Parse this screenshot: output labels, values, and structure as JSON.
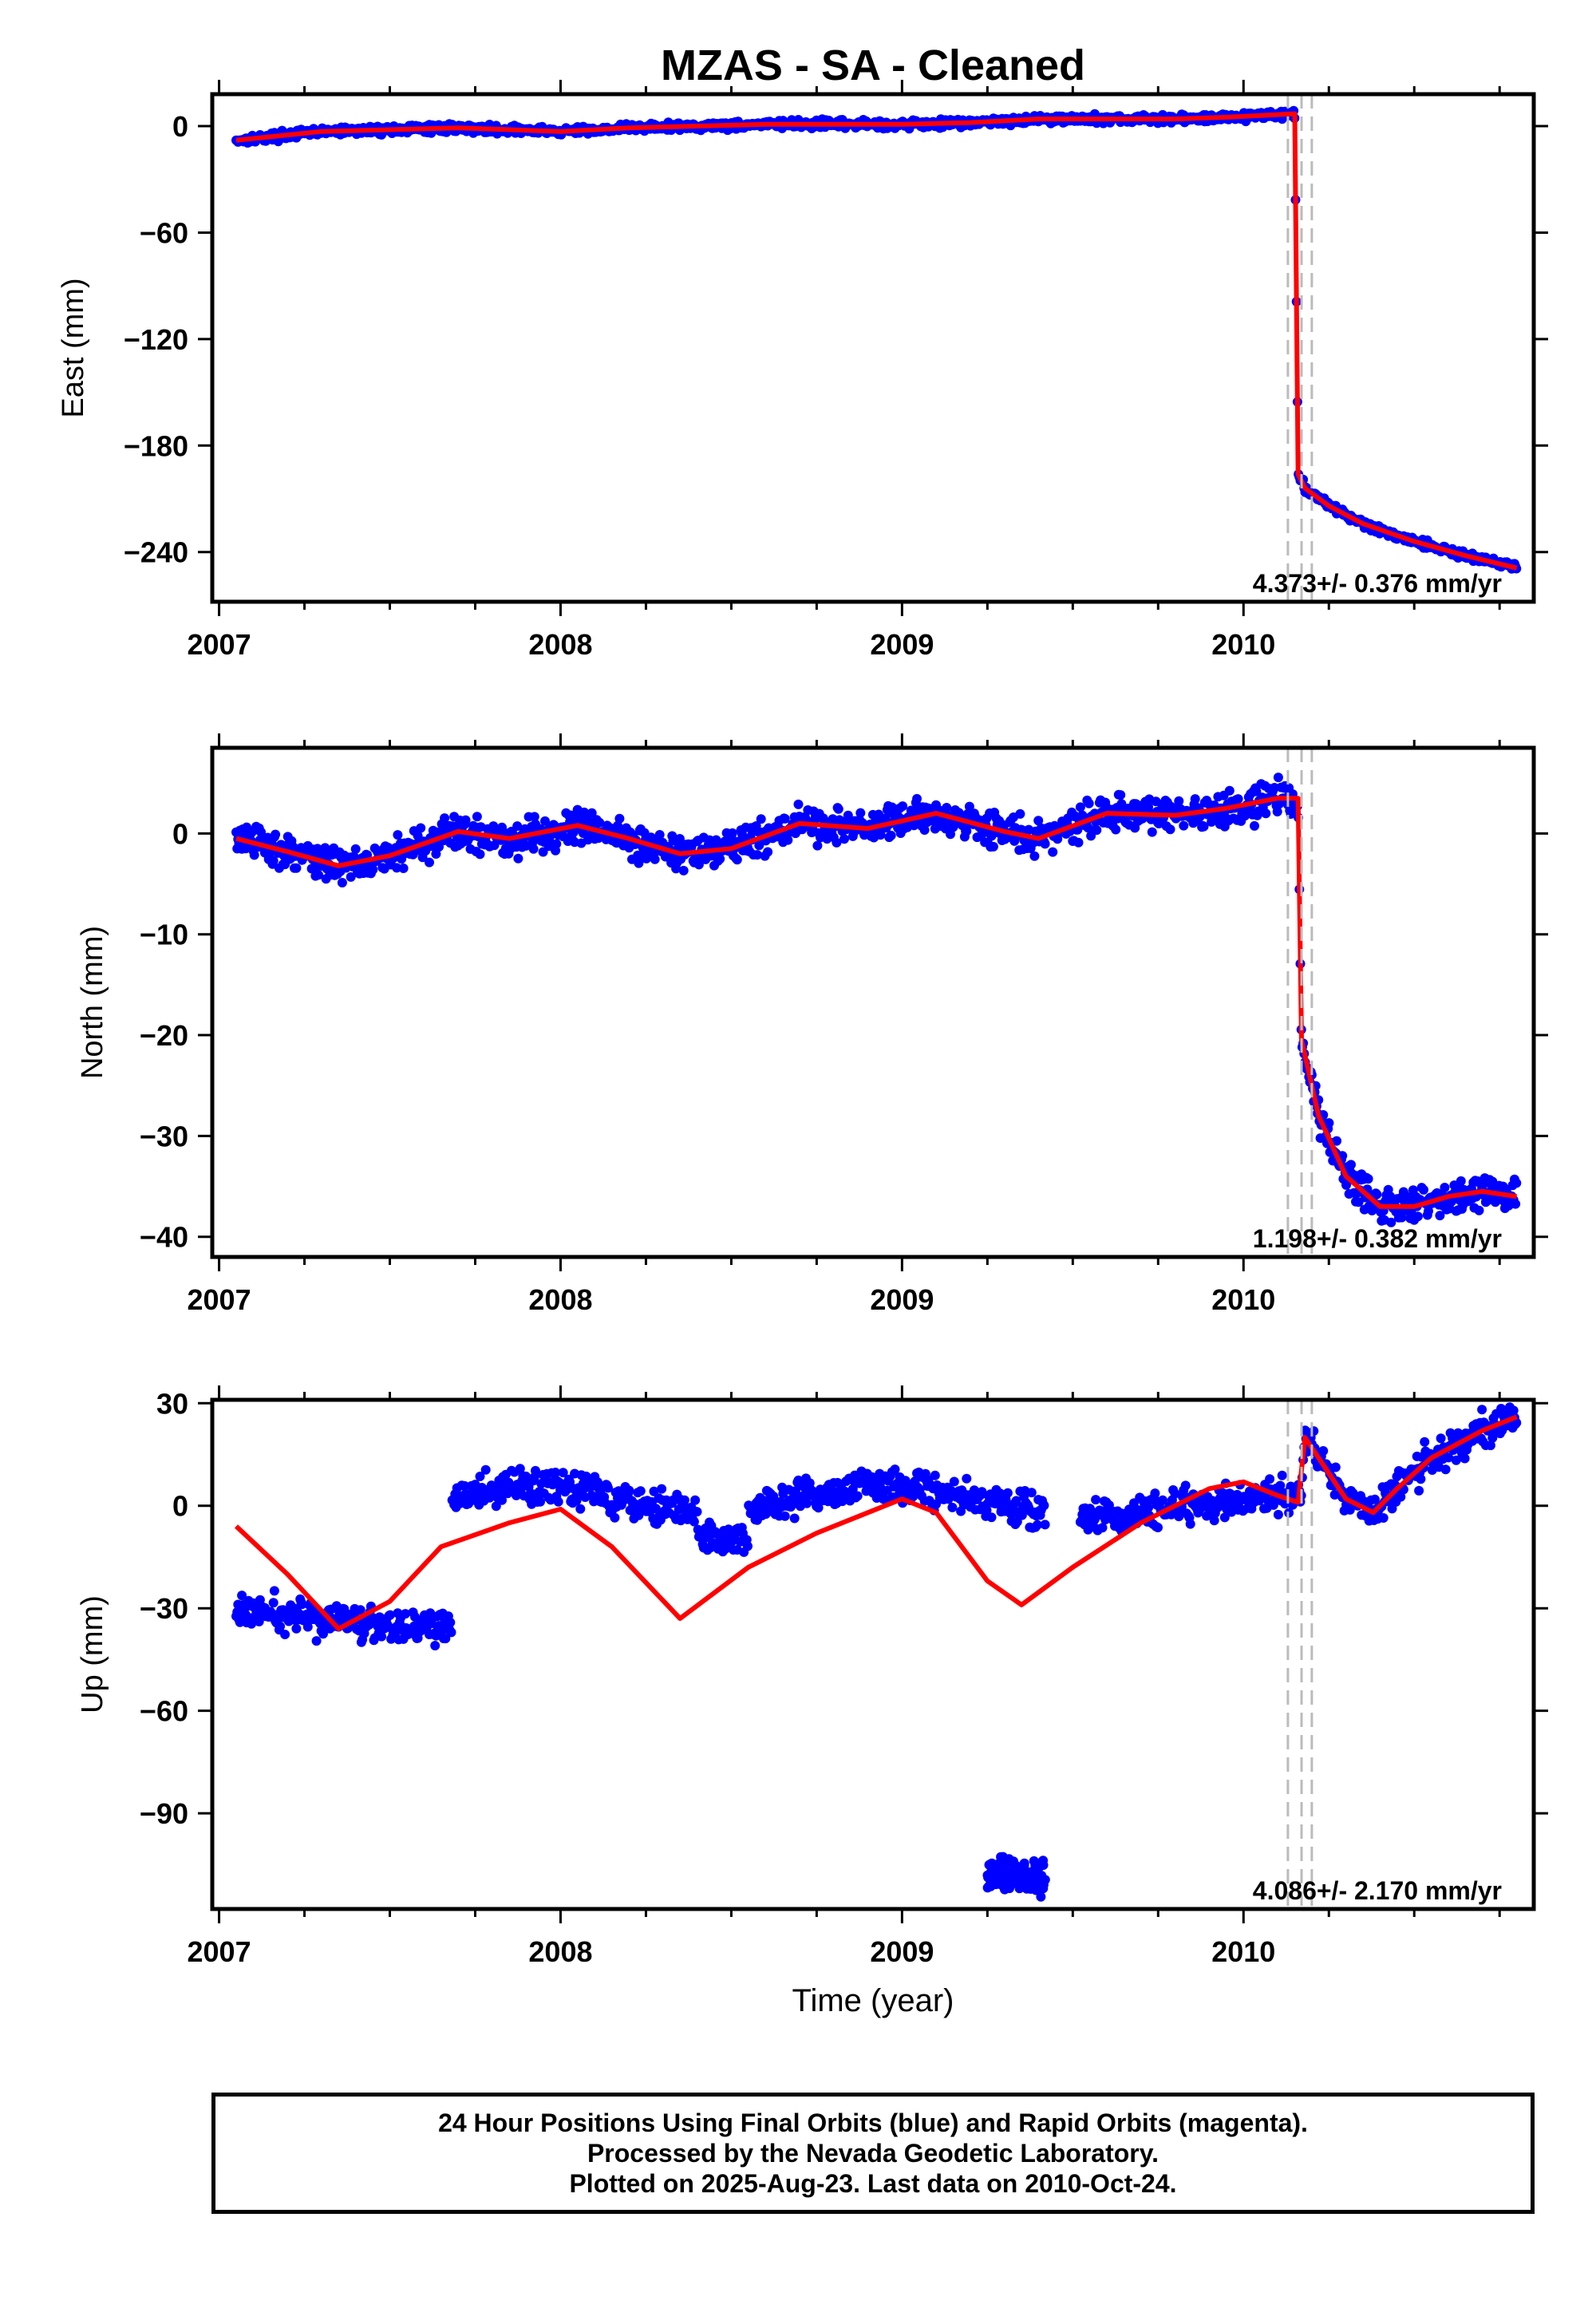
{
  "chart_data": [
    {
      "type": "scatter",
      "title": "MZAS  - SA - Cleaned",
      "xlabel": "",
      "ylabel": "East (mm)",
      "xlim": [
        2006.98,
        2010.85
      ],
      "ylim": [
        -268,
        18
      ],
      "x_ticks": [
        2007,
        2008,
        2009,
        2010
      ],
      "y_ticks": [
        0,
        -60,
        -120,
        -180,
        -240
      ],
      "steps": [
        2010.13,
        2010.17,
        2010.2
      ],
      "rate_label": "4.373+/- 0.376 mm/yr",
      "colors": {
        "data": "#0000ff",
        "model": "#ff0000",
        "steps": "#bbbbbb"
      },
      "series": [
        {
          "name": "",
          "x": [
            2007.05,
            2007.15,
            2007.3,
            2007.5,
            2007.7,
            2007.85,
            2008.0,
            2008.2,
            2008.4,
            2008.6,
            2008.8,
            2009.0,
            2009.2,
            2009.4,
            2009.6,
            2009.8,
            2009.95,
            2010.05,
            2010.15,
            2010.16,
            2010.18,
            2010.25,
            2010.35,
            2010.5,
            2010.65,
            2010.8
          ],
          "values": [
            -8,
            -6,
            -3,
            -2,
            -1,
            -2,
            -3,
            -1,
            0,
            1,
            1,
            1,
            2,
            4,
            4,
            4,
            5,
            6,
            7,
            -196,
            -204,
            -214,
            -224,
            -234,
            -242,
            -249
          ]
        }
      ]
    },
    {
      "type": "scatter",
      "xlabel": "",
      "ylabel": "North (mm)",
      "xlim": [
        2006.98,
        2010.85
      ],
      "ylim": [
        -42,
        8.5
      ],
      "x_ticks": [
        2007,
        2008,
        2009,
        2010
      ],
      "y_ticks": [
        0,
        -10,
        -20,
        -30,
        -40
      ],
      "steps": [
        2010.13,
        2010.17,
        2010.2
      ],
      "rate_label": "1.198+/- 0.382 mm/yr",
      "colors": {
        "data": "#0000ff",
        "model": "#ff0000",
        "steps": "#bbbbbb"
      },
      "series": [
        {
          "name": "",
          "x": [
            2007.05,
            2007.2,
            2007.35,
            2007.5,
            2007.7,
            2007.85,
            2008.05,
            2008.2,
            2008.35,
            2008.5,
            2008.7,
            2008.9,
            2009.1,
            2009.3,
            2009.4,
            2009.6,
            2009.8,
            2009.95,
            2010.1,
            2010.16,
            2010.17,
            2010.22,
            2010.3,
            2010.4,
            2010.5,
            2010.6,
            2010.7,
            2010.8
          ],
          "values": [
            -0.5,
            -1.8,
            -3.2,
            -2.2,
            0.2,
            -0.5,
            0.8,
            -0.5,
            -2.0,
            -1.5,
            1.0,
            0.5,
            2.0,
            0.2,
            -0.5,
            2.0,
            1.8,
            2.5,
            3.5,
            3.5,
            -20.5,
            -28,
            -34,
            -37,
            -37,
            -36,
            -35.5,
            -36
          ]
        }
      ]
    },
    {
      "type": "scatter",
      "xlabel": "Time (year)",
      "ylabel": "Up (mm)",
      "xlim": [
        2006.98,
        2010.85
      ],
      "ylim": [
        -118,
        31
      ],
      "x_ticks": [
        2007,
        2008,
        2009,
        2010
      ],
      "y_ticks": [
        30,
        0,
        -30,
        -60,
        -90
      ],
      "steps": [
        2010.13,
        2010.17,
        2010.2
      ],
      "rate_label": "4.086+/- 2.170 mm/yr",
      "colors": {
        "data": "#0000ff",
        "model": "#ff0000",
        "steps": "#bbbbbb"
      },
      "series": [
        {
          "name": "",
          "x": [
            2007.05,
            2007.2,
            2007.35,
            2007.5,
            2007.65,
            2007.85,
            2008.0,
            2008.15,
            2008.35,
            2008.55,
            2008.75,
            2009.0,
            2009.1,
            2009.25,
            2009.35,
            2009.5,
            2009.7,
            2009.9,
            2010.0,
            2010.1,
            2010.16,
            2010.18,
            2010.22,
            2010.3,
            2010.38,
            2010.45,
            2010.55,
            2010.7,
            2010.8
          ],
          "values": [
            -6,
            -20,
            -36,
            -28,
            -12,
            -5,
            -1,
            -12,
            -33,
            -18,
            -8,
            2,
            -2,
            -22,
            -29,
            -18,
            -5,
            5,
            7,
            3,
            1,
            20,
            14,
            2,
            -2,
            5,
            14,
            22,
            26
          ]
        }
      ]
    }
  ],
  "footer": {
    "line1": "24 Hour Positions Using Final Orbits (blue) and Rapid Orbits (magenta).",
    "line2": "Processed by the Nevada Geodetic Laboratory.",
    "line3": "Plotted on 2025-Aug-23. Last data on 2010-Oct-24."
  }
}
